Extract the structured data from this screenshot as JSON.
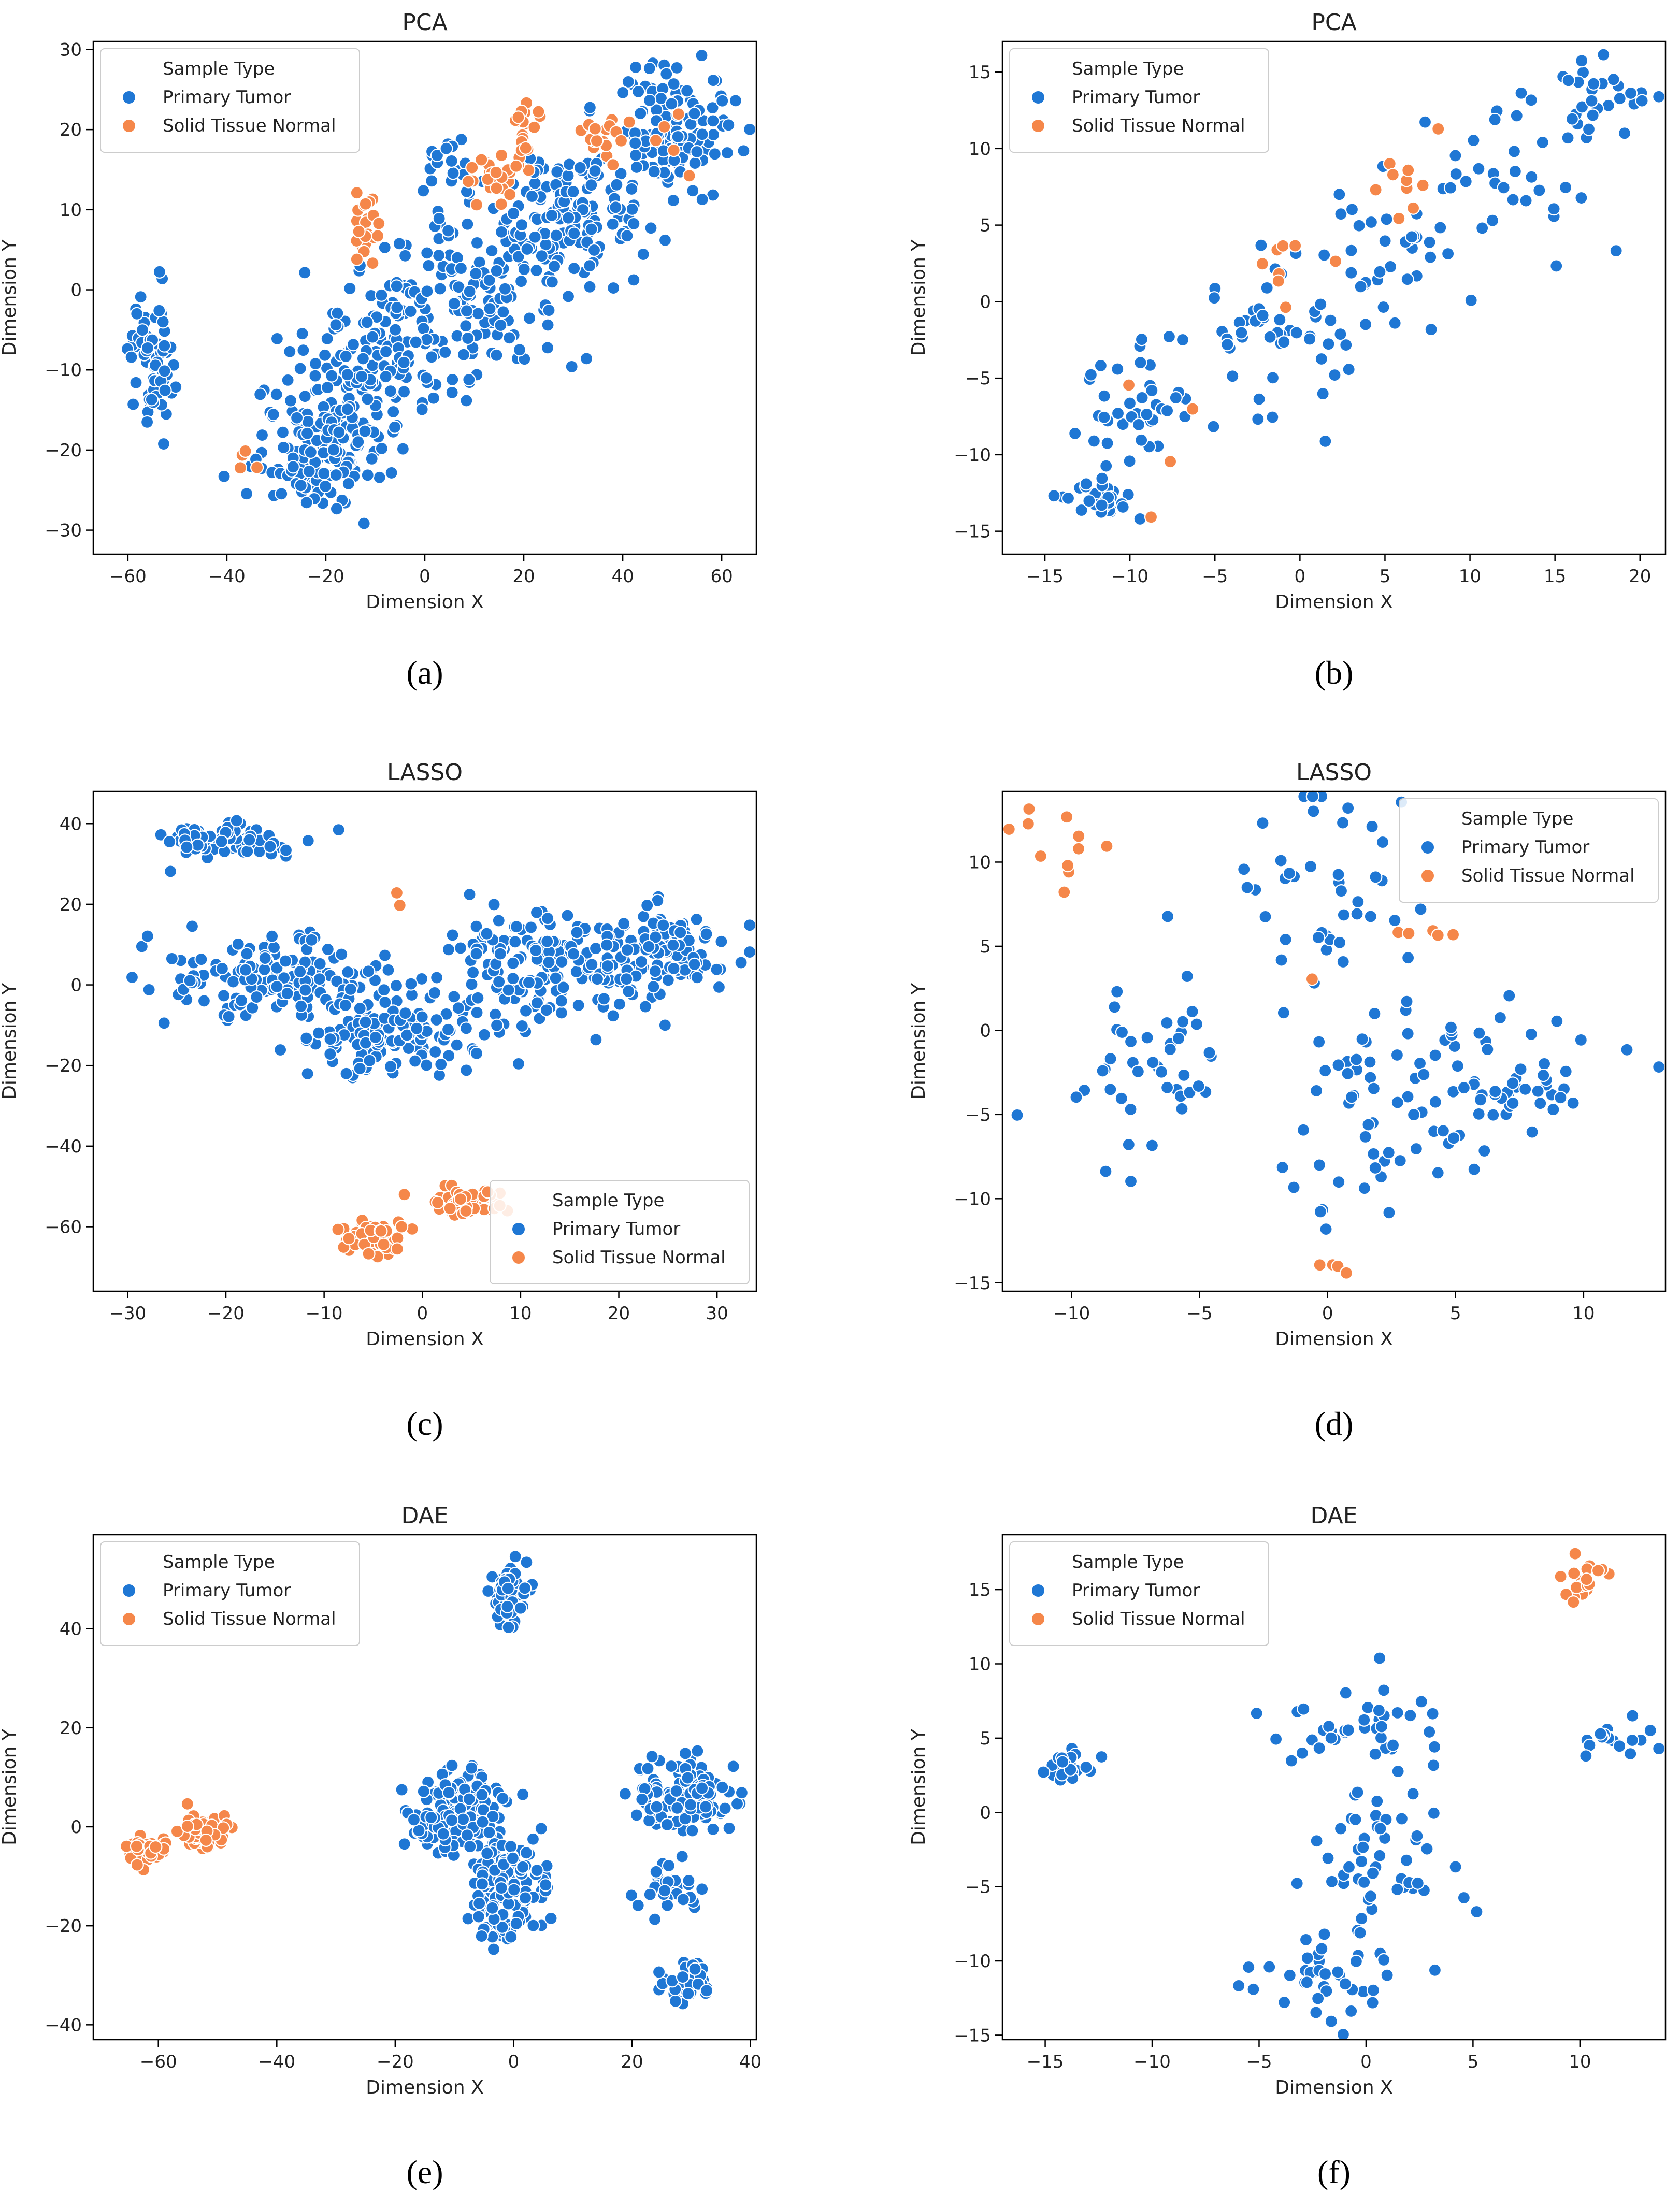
{
  "legend_title": "Sample Type",
  "legend_labels": [
    "Primary Tumor",
    "Solid Tissue Normal"
  ],
  "colors": {
    "tumor": "#1f77d4",
    "normal": "#f5874a",
    "axis": "#000000",
    "text": "#222222"
  },
  "chart_data": [
    {
      "id": "a",
      "type": "scatter",
      "panel_label": "(a)",
      "title": "PCA",
      "xlabel": "Dimension X",
      "ylabel": "Dimension Y",
      "xlim": [
        -67,
        67
      ],
      "ylim": [
        -33,
        31
      ],
      "xticks": [
        -60,
        -40,
        -20,
        0,
        20,
        40,
        60
      ],
      "yticks": [
        -30,
        -20,
        -10,
        0,
        10,
        20,
        30
      ],
      "legend_position": "top-left",
      "series": [
        {
          "name": "Primary Tumor",
          "clusters": [
            {
              "cx": -55,
              "cy": -8,
              "sx": 3,
              "sy": 6,
              "n": 70
            },
            {
              "cx": -22,
              "cy": -20,
              "sx": 9,
              "sy": 5,
              "n": 150
            },
            {
              "cx": -10,
              "cy": -8,
              "sx": 10,
              "sy": 7,
              "n": 130
            },
            {
              "cx": 10,
              "cy": 0,
              "sx": 12,
              "sy": 7,
              "n": 150
            },
            {
              "cx": 30,
              "cy": 10,
              "sx": 10,
              "sy": 6,
              "n": 140
            },
            {
              "cx": 50,
              "cy": 20,
              "sx": 8,
              "sy": 5,
              "n": 130
            },
            {
              "cx": 5,
              "cy": 15,
              "sx": 3,
              "sy": 4,
              "n": 20
            }
          ]
        },
        {
          "name": "Solid Tissue Normal",
          "clusters": [
            {
              "cx": -12,
              "cy": 8,
              "sx": 2,
              "sy": 3,
              "n": 25
            },
            {
              "cx": 14,
              "cy": 14,
              "sx": 3,
              "sy": 2,
              "n": 30
            },
            {
              "cx": 20,
              "cy": 20,
              "sx": 2,
              "sy": 3,
              "n": 20
            },
            {
              "cx": 36,
              "cy": 19,
              "sx": 3,
              "sy": 2,
              "n": 18
            },
            {
              "cx": -35,
              "cy": -20,
              "sx": 3,
              "sy": 4,
              "n": 4
            },
            {
              "cx": 50,
              "cy": 18,
              "sx": 4,
              "sy": 3,
              "n": 5
            }
          ]
        }
      ]
    },
    {
      "id": "b",
      "type": "scatter",
      "panel_label": "(b)",
      "title": "PCA",
      "xlabel": "Dimension X",
      "ylabel": "Dimension Y",
      "xlim": [
        -17.5,
        21.5
      ],
      "ylim": [
        -16.5,
        17
      ],
      "xticks": [
        -15,
        -10,
        -5,
        0,
        5,
        10,
        15,
        20
      ],
      "yticks": [
        -15,
        -10,
        -5,
        0,
        5,
        10,
        15
      ],
      "legend_position": "top-left",
      "series": [
        {
          "name": "Primary Tumor",
          "clusters": [
            {
              "cx": -12,
              "cy": -13,
              "sx": 1.5,
              "sy": 1,
              "n": 30
            },
            {
              "cx": -10,
              "cy": -7,
              "sx": 2.5,
              "sy": 2.5,
              "n": 40
            },
            {
              "cx": -2,
              "cy": -3,
              "sx": 3,
              "sy": 3,
              "n": 50
            },
            {
              "cx": 5,
              "cy": 3,
              "sx": 3,
              "sy": 3,
              "n": 40
            },
            {
              "cx": 12,
              "cy": 8,
              "sx": 3,
              "sy": 3,
              "n": 30
            },
            {
              "cx": 17,
              "cy": 13,
              "sx": 2,
              "sy": 2,
              "n": 30
            }
          ]
        },
        {
          "name": "Solid Tissue Normal",
          "clusters": [
            {
              "cx": 0,
              "cy": 1.5,
              "sx": 1.5,
              "sy": 1.5,
              "n": 8
            },
            {
              "cx": 6,
              "cy": 8,
              "sx": 2,
              "sy": 2,
              "n": 10
            },
            {
              "cx": -8,
              "cy": -8,
              "sx": 3,
              "sy": 3,
              "n": 4
            }
          ]
        }
      ]
    },
    {
      "id": "c",
      "type": "scatter",
      "panel_label": "(c)",
      "title": "LASSO",
      "xlabel": "Dimension X",
      "ylabel": "Dimension Y",
      "xlim": [
        -33.5,
        34
      ],
      "ylim": [
        -76,
        48
      ],
      "xticks": [
        -30,
        -20,
        -10,
        0,
        10,
        20,
        30
      ],
      "yticks": [
        -60,
        -40,
        -20,
        0,
        20,
        40
      ],
      "legend_position": "bottom-right",
      "series": [
        {
          "name": "Primary Tumor",
          "clusters": [
            {
              "cx": -20,
              "cy": 36,
              "sx": 5,
              "sy": 3,
              "n": 80
            },
            {
              "cx": -15,
              "cy": 2,
              "sx": 7,
              "sy": 6,
              "n": 150
            },
            {
              "cx": -3,
              "cy": -12,
              "sx": 6,
              "sy": 7,
              "n": 150
            },
            {
              "cx": 12,
              "cy": 5,
              "sx": 6,
              "sy": 10,
              "n": 150
            },
            {
              "cx": 24,
              "cy": 8,
              "sx": 5,
              "sy": 8,
              "n": 120
            }
          ]
        },
        {
          "name": "Solid Tissue Normal",
          "clusters": [
            {
              "cx": -5,
              "cy": -63,
              "sx": 2.5,
              "sy": 3,
              "n": 60
            },
            {
              "cx": 5,
              "cy": -54,
              "sx": 3,
              "sy": 2,
              "n": 60
            },
            {
              "cx": -3,
              "cy": 22,
              "sx": 1,
              "sy": 1.5,
              "n": 2
            }
          ]
        }
      ]
    },
    {
      "id": "d",
      "type": "scatter",
      "panel_label": "(d)",
      "title": "LASSO",
      "xlabel": "Dimension X",
      "ylabel": "Dimension Y",
      "xlim": [
        -12.7,
        13.2
      ],
      "ylim": [
        -15.5,
        14.2
      ],
      "xticks": [
        -10,
        -5,
        0,
        5,
        10
      ],
      "yticks": [
        -15,
        -10,
        -5,
        0,
        5,
        10
      ],
      "legend_position": "top-right",
      "series": [
        {
          "name": "Primary Tumor",
          "clusters": [
            {
              "cx": -7,
              "cy": -2,
              "sx": 2.5,
              "sy": 4,
              "n": 45
            },
            {
              "cx": 0,
              "cy": 8,
              "sx": 2,
              "sy": 4,
              "n": 40
            },
            {
              "cx": 2,
              "cy": -3,
              "sx": 3,
              "sy": 5,
              "n": 60
            },
            {
              "cx": 7,
              "cy": -3,
              "sx": 3,
              "sy": 3,
              "n": 50
            }
          ]
        },
        {
          "name": "Solid Tissue Normal",
          "clusters": [
            {
              "cx": -10.5,
              "cy": 11,
              "sx": 1,
              "sy": 1.4,
              "n": 11
            },
            {
              "cx": 4,
              "cy": 5.7,
              "sx": 1,
              "sy": 0.2,
              "n": 5
            },
            {
              "cx": 0,
              "cy": -14,
              "sx": 0.4,
              "sy": 0.4,
              "n": 4
            },
            {
              "cx": -0.7,
              "cy": 3,
              "sx": 0.1,
              "sy": 0.1,
              "n": 1
            }
          ]
        }
      ]
    },
    {
      "id": "e",
      "type": "scatter",
      "panel_label": "(e)",
      "title": "DAE",
      "xlabel": "Dimension X",
      "ylabel": "Dimension Y",
      "xlim": [
        -71,
        41
      ],
      "ylim": [
        -43,
        59
      ],
      "xticks": [
        -60,
        -40,
        -20,
        0,
        20,
        40
      ],
      "yticks": [
        -40,
        -20,
        0,
        20,
        40
      ],
      "legend_position": "top-left",
      "series": [
        {
          "name": "Primary Tumor",
          "clusters": [
            {
              "cx": -1,
              "cy": 47,
              "sx": 2,
              "sy": 4,
              "n": 70
            },
            {
              "cx": -10,
              "cy": 2,
              "sx": 5,
              "sy": 6,
              "n": 150
            },
            {
              "cx": -1,
              "cy": -12,
              "sx": 4,
              "sy": 7,
              "n": 150
            },
            {
              "cx": 28,
              "cy": 7,
              "sx": 5,
              "sy": 5,
              "n": 120
            },
            {
              "cx": 26,
              "cy": -12,
              "sx": 4,
              "sy": 3,
              "n": 30
            },
            {
              "cx": 29,
              "cy": -32,
              "sx": 2.5,
              "sy": 3,
              "n": 40
            }
          ]
        },
        {
          "name": "Solid Tissue Normal",
          "clusters": [
            {
              "cx": -62,
              "cy": -5,
              "sx": 2,
              "sy": 1.5,
              "n": 50
            },
            {
              "cx": -52,
              "cy": -1,
              "sx": 3,
              "sy": 2,
              "n": 70
            }
          ]
        }
      ]
    },
    {
      "id": "f",
      "type": "scatter",
      "panel_label": "(f)",
      "title": "DAE",
      "xlabel": "Dimension X",
      "ylabel": "Dimension Y",
      "xlim": [
        -17,
        14
      ],
      "ylim": [
        -15.3,
        18.7
      ],
      "xticks": [
        -15,
        -10,
        -5,
        0,
        5,
        10
      ],
      "yticks": [
        -15,
        -10,
        -5,
        0,
        5,
        10,
        15
      ],
      "legend_position": "top-left",
      "series": [
        {
          "name": "Primary Tumor",
          "clusters": [
            {
              "cx": -14,
              "cy": 3.2,
              "sx": 1,
              "sy": 0.8,
              "n": 25
            },
            {
              "cx": 0,
              "cy": 6,
              "sx": 3,
              "sy": 2,
              "n": 40
            },
            {
              "cx": 1,
              "cy": -3,
              "sx": 2.5,
              "sy": 3,
              "n": 50
            },
            {
              "cx": -2,
              "cy": -11,
              "sx": 3,
              "sy": 2,
              "n": 40
            },
            {
              "cx": 11.5,
              "cy": 4.7,
              "sx": 1,
              "sy": 0.6,
              "n": 18
            }
          ]
        },
        {
          "name": "Solid Tissue Normal",
          "clusters": [
            {
              "cx": 10,
              "cy": 15.5,
              "sx": 1,
              "sy": 1,
              "n": 20
            }
          ]
        }
      ]
    }
  ]
}
